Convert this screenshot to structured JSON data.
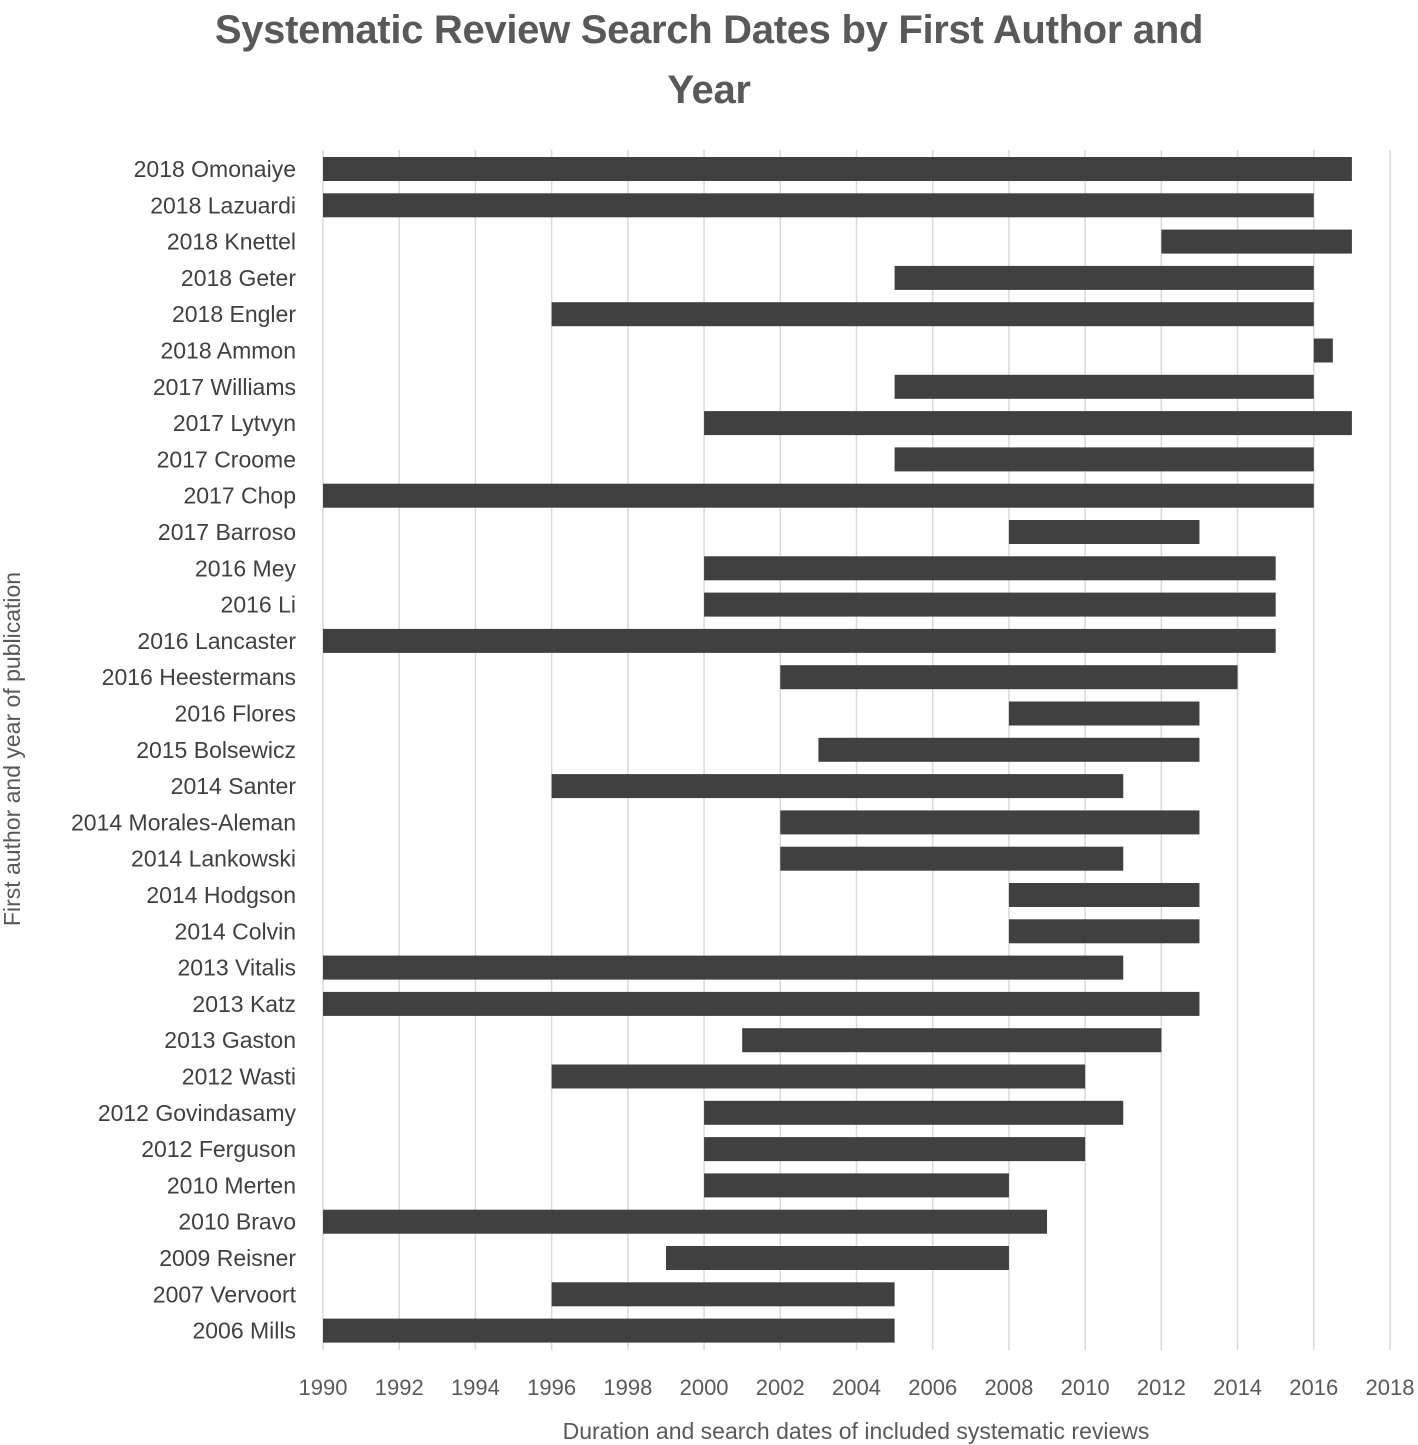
{
  "chart_data": {
    "type": "bar",
    "orientation": "horizontal-floating",
    "title_line1": "Systematic Review Search Dates by First Author and",
    "title_line2": "Year",
    "xlabel": "Duration and search dates of included systematic reviews",
    "ylabel": "First author and year of publication",
    "xlim": [
      1990,
      2018
    ],
    "xticks": [
      "1990",
      "1992",
      "1994",
      "1996",
      "1998",
      "2000",
      "2002",
      "2004",
      "2006",
      "2008",
      "2010",
      "2012",
      "2014",
      "2016",
      "2018"
    ],
    "grid": true,
    "bar_color": "#404040",
    "grid_color": "#d9d9d9",
    "series": [
      {
        "label": "2018 Omonaiye",
        "start": 1990,
        "end": 2017
      },
      {
        "label": "2018 Lazuardi",
        "start": 1990,
        "end": 2016
      },
      {
        "label": "2018 Knettel",
        "start": 2012,
        "end": 2017
      },
      {
        "label": "2018 Geter",
        "start": 2005,
        "end": 2016
      },
      {
        "label": "2018 Engler",
        "start": 1996,
        "end": 2016
      },
      {
        "label": "2018 Ammon",
        "start": 2016,
        "end": 2016.5
      },
      {
        "label": "2017 Williams",
        "start": 2005,
        "end": 2016
      },
      {
        "label": "2017 Lytvyn",
        "start": 2000,
        "end": 2017
      },
      {
        "label": "2017 Croome",
        "start": 2005,
        "end": 2016
      },
      {
        "label": "2017 Chop",
        "start": 1990,
        "end": 2016
      },
      {
        "label": "2017 Barroso",
        "start": 2008,
        "end": 2013
      },
      {
        "label": "2016 Mey",
        "start": 2000,
        "end": 2015
      },
      {
        "label": "2016 Li",
        "start": 2000,
        "end": 2015
      },
      {
        "label": "2016 Lancaster",
        "start": 1990,
        "end": 2015
      },
      {
        "label": "2016 Heestermans",
        "start": 2002,
        "end": 2014
      },
      {
        "label": "2016 Flores",
        "start": 2008,
        "end": 2013
      },
      {
        "label": "2015 Bolsewicz",
        "start": 2003,
        "end": 2013
      },
      {
        "label": "2014 Santer",
        "start": 1996,
        "end": 2011
      },
      {
        "label": "2014 Morales-Aleman",
        "start": 2002,
        "end": 2013
      },
      {
        "label": "2014 Lankowski",
        "start": 2002,
        "end": 2011
      },
      {
        "label": "2014 Hodgson",
        "start": 2008,
        "end": 2013
      },
      {
        "label": "2014 Colvin",
        "start": 2008,
        "end": 2013
      },
      {
        "label": "2013 Vitalis",
        "start": 1990,
        "end": 2011
      },
      {
        "label": "2013 Katz",
        "start": 1990,
        "end": 2013
      },
      {
        "label": "2013 Gaston",
        "start": 2001,
        "end": 2012
      },
      {
        "label": "2012 Wasti",
        "start": 1996,
        "end": 2010
      },
      {
        "label": "2012 Govindasamy",
        "start": 2000,
        "end": 2011
      },
      {
        "label": "2012 Ferguson",
        "start": 2000,
        "end": 2010
      },
      {
        "label": "2010 Merten",
        "start": 2000,
        "end": 2008
      },
      {
        "label": "2010 Bravo",
        "start": 1990,
        "end": 2009
      },
      {
        "label": "2009 Reisner",
        "start": 1999,
        "end": 2008
      },
      {
        "label": "2007 Vervoort",
        "start": 1996,
        "end": 2005
      },
      {
        "label": "2006 Mills",
        "start": 1990,
        "end": 2005
      }
    ]
  }
}
